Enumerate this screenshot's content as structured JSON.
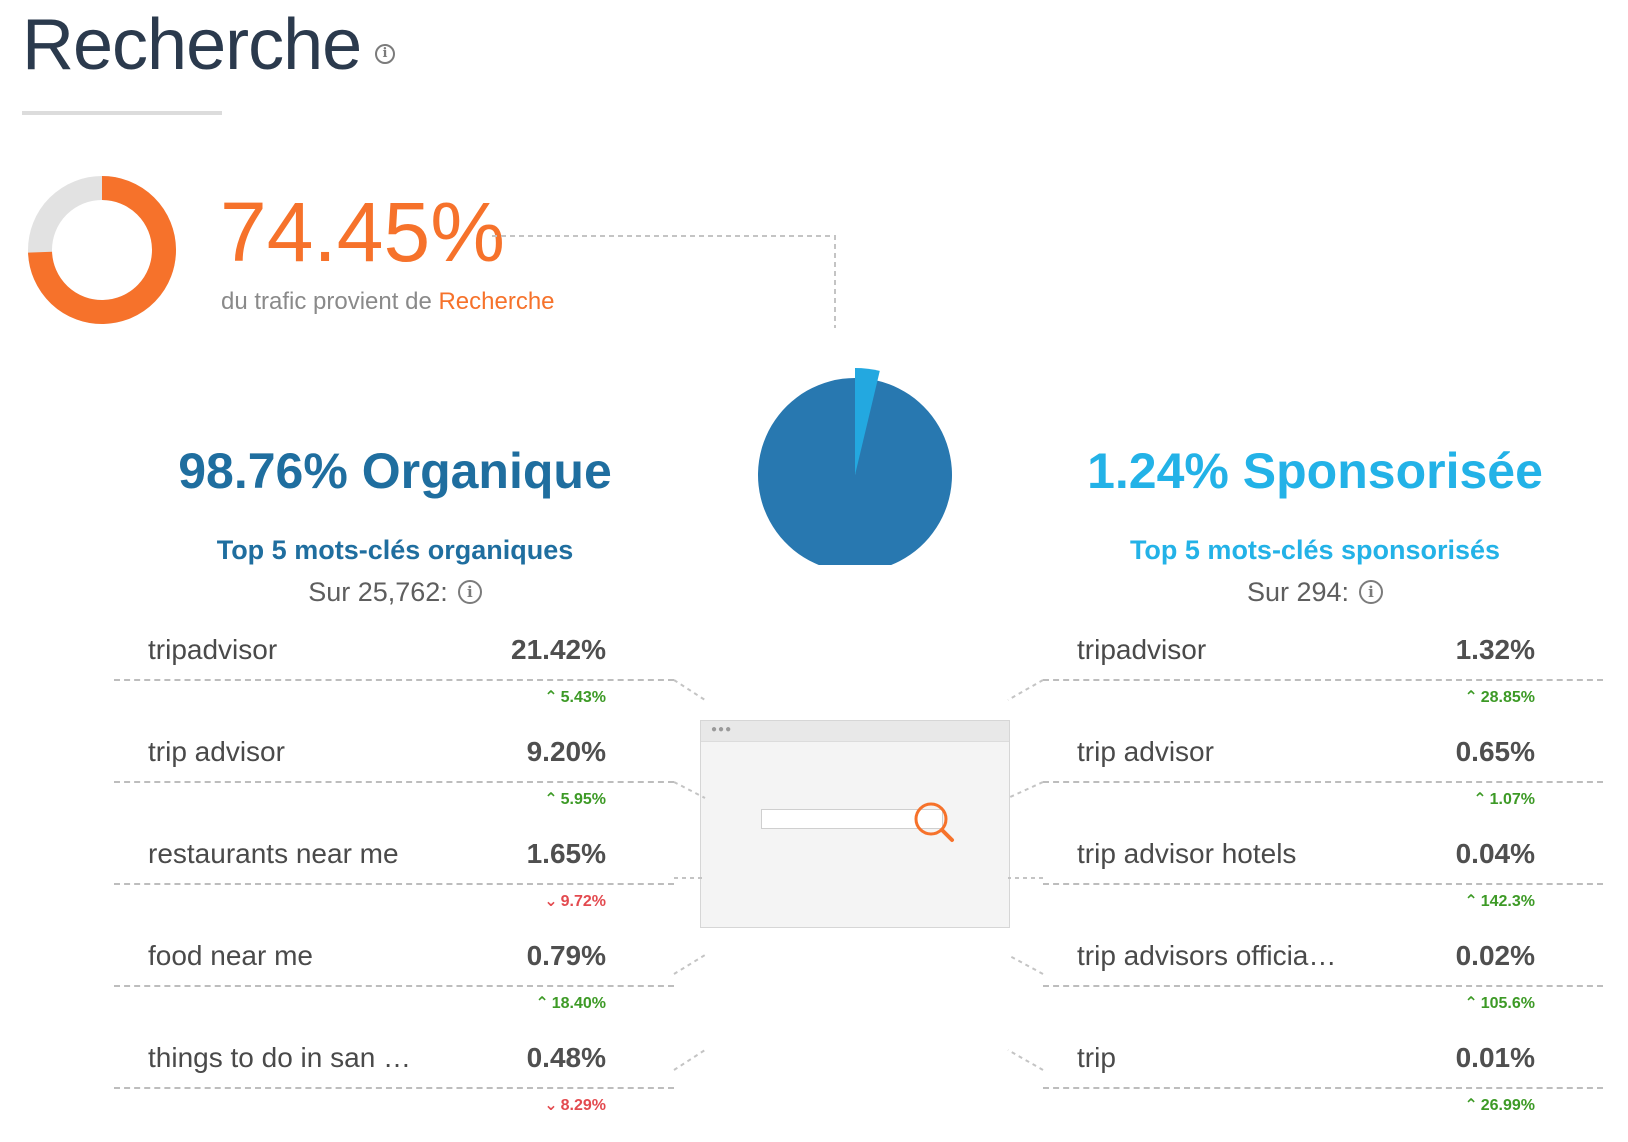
{
  "header": {
    "title": "Recherche",
    "info_icon": "info-icon"
  },
  "summary": {
    "percent": "74.45%",
    "share": 0.7445,
    "caption_prefix": "du trafic provient de ",
    "caption_highlight": "Recherche",
    "colors": {
      "accent": "#f6722b",
      "track": "#e2e2e2"
    }
  },
  "split_pie": {
    "organic_share": 0.9876,
    "paid_share": 0.0124,
    "colors": {
      "organic": "#2878b0",
      "paid": "#23a8e0"
    }
  },
  "organic": {
    "percent": "98.76%",
    "label": "Organique",
    "subtitle": "Top 5  mots-clés organiques",
    "sur": "Sur 25,762:",
    "color": "#1f6e9f",
    "keywords": [
      {
        "name": "tripadvisor",
        "value": "21.42%",
        "change": "5.43%",
        "dir": "up"
      },
      {
        "name": "trip advisor",
        "value": "9.20%",
        "change": "5.95%",
        "dir": "up"
      },
      {
        "name": "restaurants near me",
        "value": "1.65%",
        "change": "9.72%",
        "dir": "down"
      },
      {
        "name": "food near me",
        "value": "0.79%",
        "change": "18.40%",
        "dir": "up"
      },
      {
        "name": "things to do in san …",
        "value": "0.48%",
        "change": "8.29%",
        "dir": "down"
      }
    ]
  },
  "paid": {
    "percent": "1.24%",
    "label": "Sponsorisée",
    "subtitle": "Top 5  mots-clés sponsorisés",
    "sur": "Sur 294:",
    "color": "#23b2e7",
    "keywords": [
      {
        "name": "tripadvisor",
        "value": "1.32%",
        "change": "28.85%",
        "dir": "up"
      },
      {
        "name": "trip advisor",
        "value": "0.65%",
        "change": "1.07%",
        "dir": "up"
      },
      {
        "name": "trip advisor hotels",
        "value": "0.04%",
        "change": "142.3%",
        "dir": "up"
      },
      {
        "name": "trip advisors officia…",
        "value": "0.02%",
        "change": "105.6%",
        "dir": "up"
      },
      {
        "name": "trip",
        "value": "0.01%",
        "change": "26.99%",
        "dir": "up"
      }
    ]
  }
}
